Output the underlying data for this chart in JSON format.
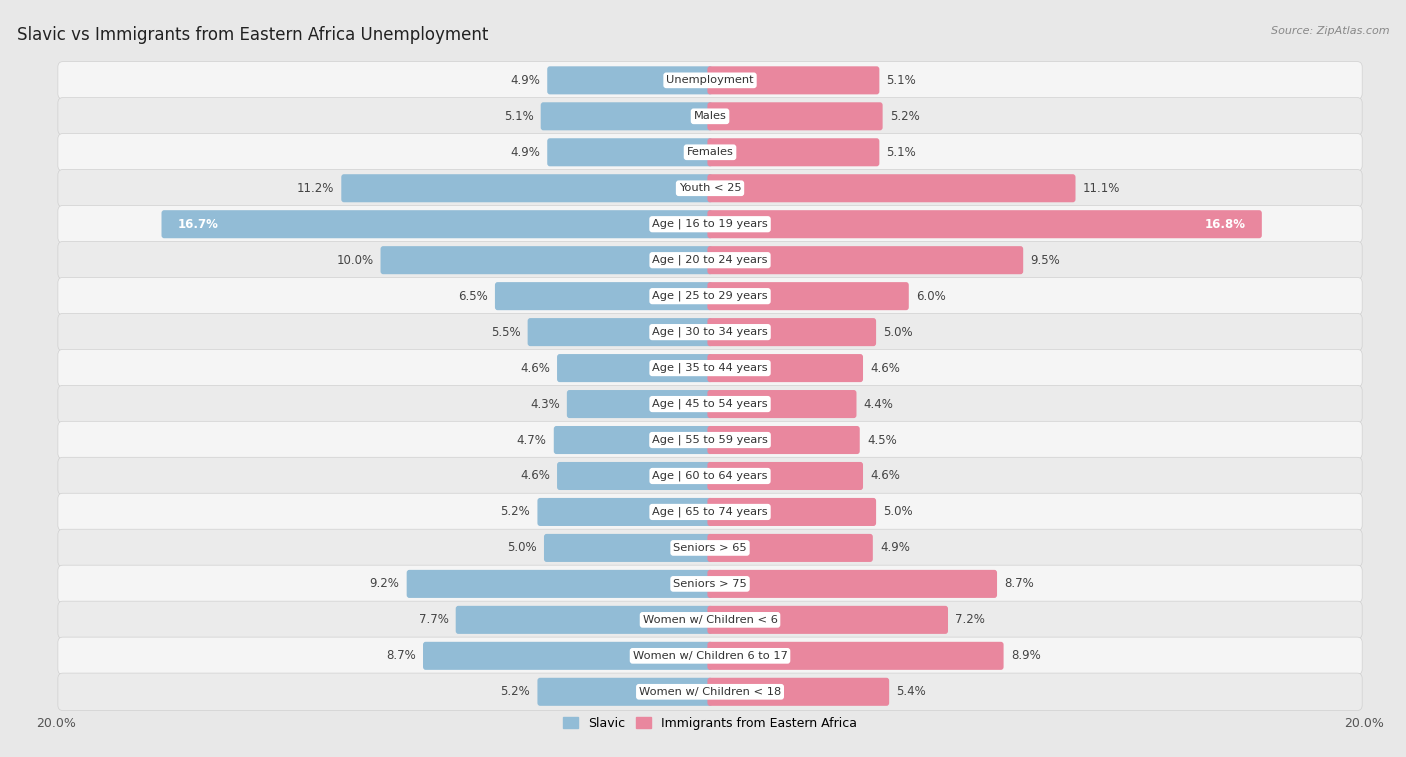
{
  "title": "Slavic vs Immigrants from Eastern Africa Unemployment",
  "source": "Source: ZipAtlas.com",
  "categories": [
    "Unemployment",
    "Males",
    "Females",
    "Youth < 25",
    "Age | 16 to 19 years",
    "Age | 20 to 24 years",
    "Age | 25 to 29 years",
    "Age | 30 to 34 years",
    "Age | 35 to 44 years",
    "Age | 45 to 54 years",
    "Age | 55 to 59 years",
    "Age | 60 to 64 years",
    "Age | 65 to 74 years",
    "Seniors > 65",
    "Seniors > 75",
    "Women w/ Children < 6",
    "Women w/ Children 6 to 17",
    "Women w/ Children < 18"
  ],
  "slavic_values": [
    4.9,
    5.1,
    4.9,
    11.2,
    16.7,
    10.0,
    6.5,
    5.5,
    4.6,
    4.3,
    4.7,
    4.6,
    5.2,
    5.0,
    9.2,
    7.7,
    8.7,
    5.2
  ],
  "eastern_africa_values": [
    5.1,
    5.2,
    5.1,
    11.1,
    16.8,
    9.5,
    6.0,
    5.0,
    4.6,
    4.4,
    4.5,
    4.6,
    5.0,
    4.9,
    8.7,
    7.2,
    8.9,
    5.4
  ],
  "slavic_color": "#92bcd6",
  "eastern_africa_color": "#e9879e",
  "page_bg": "#e8e8e8",
  "row_bg_light": "#f5f5f5",
  "row_bg_dark": "#ebebeb",
  "axis_limit": 20.0,
  "legend_slavic": "Slavic",
  "legend_eastern_africa": "Immigrants from Eastern Africa",
  "label_inside_threshold": 2.5
}
